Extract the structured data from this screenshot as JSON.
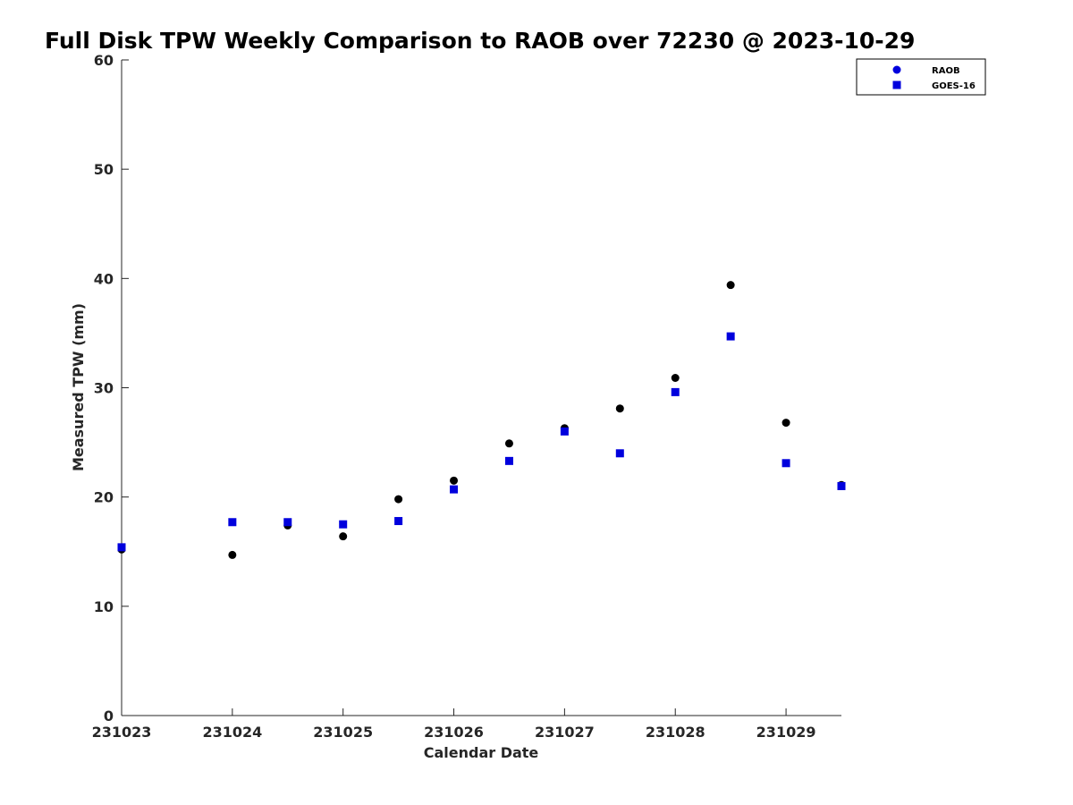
{
  "chart_data": {
    "type": "scatter",
    "title": "Full Disk TPW Weekly Comparison to RAOB over 72230 @ 2023-10-29",
    "xlabel": "Calendar Date",
    "ylabel": "Measured TPW (mm)",
    "xlim": [
      0,
      13
    ],
    "ylim": [
      0,
      60
    ],
    "x_tick_values": [
      0,
      2,
      4,
      6,
      8,
      10,
      12
    ],
    "x_tick_labels": [
      "231023",
      "231024",
      "231025",
      "231026",
      "231027",
      "231028",
      "231029"
    ],
    "y_tick_values": [
      0,
      10,
      20,
      30,
      40,
      50,
      60
    ],
    "y_tick_labels": [
      "0",
      "10",
      "20",
      "30",
      "40",
      "50",
      "60"
    ],
    "grid": false,
    "legend_position": "top-right",
    "series": [
      {
        "name": "RAOB",
        "marker": "circle",
        "color": "#000000",
        "legend_color": "#0000dd",
        "x": [
          0,
          2,
          3,
          4,
          5,
          6,
          7,
          8,
          9,
          10,
          11,
          12,
          13
        ],
        "values": [
          15.2,
          14.7,
          17.4,
          16.4,
          19.8,
          21.5,
          24.9,
          26.3,
          28.1,
          30.9,
          39.4,
          26.8,
          21.1
        ]
      },
      {
        "name": "GOES-16",
        "marker": "square",
        "color": "#0000dd",
        "legend_color": "#0000dd",
        "x": [
          0,
          2,
          3,
          4,
          5,
          6,
          7,
          8,
          9,
          10,
          11,
          12,
          13
        ],
        "values": [
          15.4,
          17.7,
          17.7,
          17.5,
          17.8,
          20.7,
          23.3,
          26.0,
          24.0,
          29.6,
          34.7,
          23.1,
          21.0
        ]
      }
    ]
  }
}
